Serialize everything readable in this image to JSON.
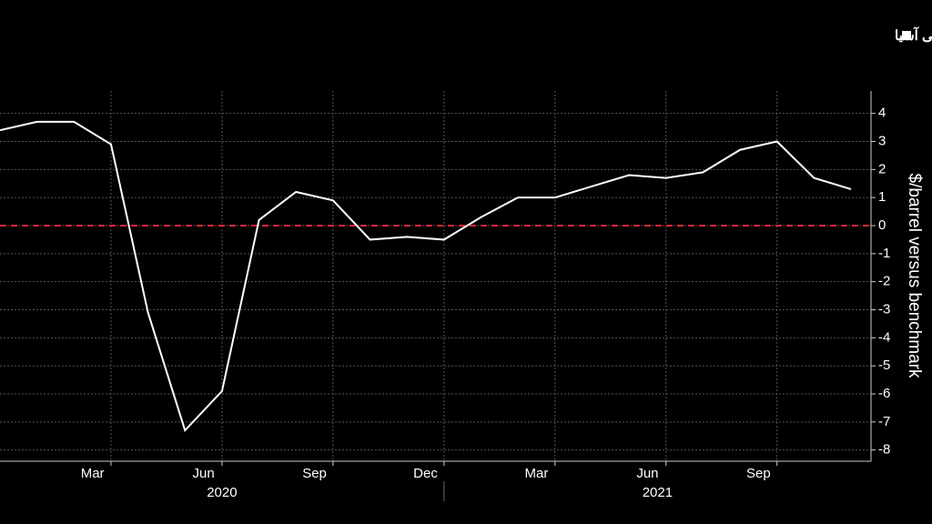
{
  "chart_data": {
    "type": "line",
    "legend_label": "سعر الخام العربي الخفيف من أرامكو المتجه إلى آسيا",
    "y_axis_label": "$/barrel versus benchmark",
    "x": [
      "2020-01",
      "2020-02",
      "2020-03",
      "2020-04",
      "2020-05",
      "2020-06",
      "2020-07",
      "2020-08",
      "2020-09",
      "2020-10",
      "2020-11",
      "2020-12",
      "2021-01",
      "2021-02",
      "2021-03",
      "2021-04",
      "2021-05",
      "2021-06",
      "2021-07",
      "2021-08",
      "2021-09",
      "2021-10",
      "2021-11",
      "2021-12"
    ],
    "series": [
      {
        "name": "سعر الخام العربي الخفيف من أرامكو المتجه إلى آسيا",
        "color": "#ffffff",
        "values": [
          3.4,
          3.7,
          3.7,
          2.9,
          -3.1,
          -7.3,
          -5.9,
          0.2,
          1.2,
          0.9,
          -0.5,
          -0.4,
          -0.5,
          0.3,
          1.0,
          1.0,
          1.4,
          1.8,
          1.7,
          1.9,
          2.7,
          3.0,
          1.7,
          1.3
        ]
      }
    ],
    "xlim": [
      "2020-01",
      "2021-12"
    ],
    "xticks": [
      {
        "value": "2020-03",
        "label": "Mar"
      },
      {
        "value": "2020-06",
        "label": "Jun"
      },
      {
        "value": "2020-09",
        "label": "Sep"
      },
      {
        "value": "2020-12",
        "label": "Dec"
      },
      {
        "value": "2021-03",
        "label": "Mar"
      },
      {
        "value": "2021-06",
        "label": "Jun"
      },
      {
        "value": "2021-09",
        "label": "Sep"
      }
    ],
    "years": [
      "2020",
      "2021"
    ],
    "ylim": [
      -8.4,
      4.8
    ],
    "yticks": [
      4,
      3,
      2,
      1,
      0,
      -1,
      -2,
      -3,
      -4,
      -5,
      -6,
      -7,
      -8
    ],
    "reference_line": {
      "value": 0,
      "color": "#e0263a"
    },
    "grid": true
  }
}
